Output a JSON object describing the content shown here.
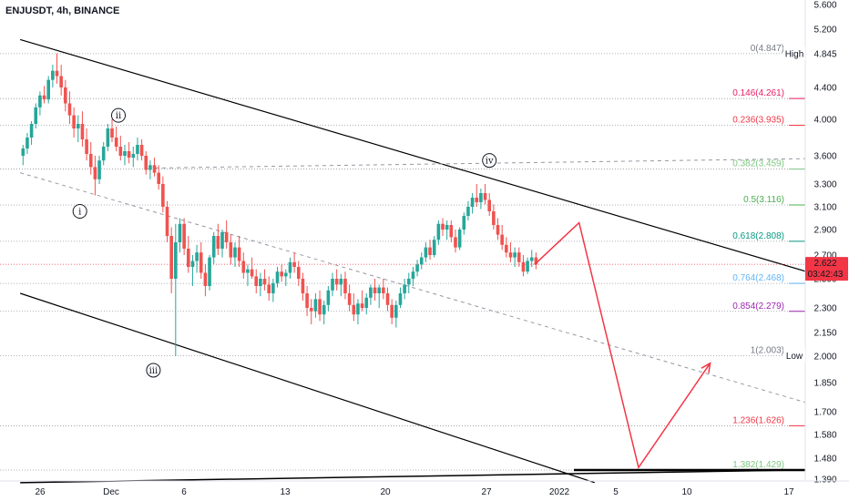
{
  "header": {
    "symbol_title": "ENJUSDT, 4h, BINANCE"
  },
  "colors": {
    "up": "#26a69a",
    "down": "#ef5350",
    "projection": "#f23645",
    "price_badge": "#f23645",
    "channel": "#000000"
  },
  "chart_data": {
    "type": "candlestick",
    "title": "ENJUSDT, 4h, BINANCE",
    "ylim": [
      1.37,
      5.7
    ],
    "y_ticks": [
      {
        "value": 5.6,
        "label": "5.600"
      },
      {
        "value": 5.2,
        "label": "5.200"
      },
      {
        "value": 4.845,
        "label": "4.845"
      },
      {
        "value": 4.4,
        "label": "4.400"
      },
      {
        "value": 4.0,
        "label": "4.000"
      },
      {
        "value": 3.6,
        "label": "3.600"
      },
      {
        "value": 3.3,
        "label": "3.300"
      },
      {
        "value": 3.1,
        "label": "3.100"
      },
      {
        "value": 2.9,
        "label": "2.900"
      },
      {
        "value": 2.7,
        "label": "2.700"
      },
      {
        "value": 2.5,
        "label": "2.500"
      },
      {
        "value": 2.3,
        "label": "2.300"
      },
      {
        "value": 2.15,
        "label": "2.150"
      },
      {
        "value": 2.0,
        "label": "2.000"
      },
      {
        "value": 1.85,
        "label": "1.850"
      },
      {
        "value": 1.7,
        "label": "1.700"
      },
      {
        "value": 1.58,
        "label": "1.580"
      },
      {
        "value": 1.48,
        "label": "1.480"
      },
      {
        "value": 1.39,
        "label": "1.390"
      }
    ],
    "x_ticks": [
      {
        "label": "26",
        "day": -5
      },
      {
        "label": "Dec",
        "day": 0
      },
      {
        "label": "6",
        "day": 5
      },
      {
        "label": "13",
        "day": 12
      },
      {
        "label": "20",
        "day": 19
      },
      {
        "label": "27",
        "day": 26
      },
      {
        "label": "2022",
        "day": 31
      },
      {
        "label": "5",
        "day": 35
      },
      {
        "label": "10",
        "day": 40
      },
      {
        "label": "17",
        "day": 47
      }
    ],
    "high_label": "High",
    "low_label": "Low",
    "current_price": {
      "value": 2.622,
      "label": "2.622",
      "countdown": "03:42:43"
    },
    "fib_levels": [
      {
        "level": 0,
        "price": 4.847,
        "label": "0(4.847)",
        "color": "#787b86"
      },
      {
        "level": 0.146,
        "price": 4.261,
        "label": "0.146(4.261)",
        "color": "#e91e63"
      },
      {
        "level": 0.236,
        "price": 3.935,
        "label": "0.236(3.935)",
        "color": "#f23645"
      },
      {
        "level": 0.382,
        "price": 3.459,
        "label": "0.382(3.459)",
        "color": "#81c784"
      },
      {
        "level": 0.5,
        "price": 3.116,
        "label": "0.5(3.116)",
        "color": "#4caf50"
      },
      {
        "level": 0.618,
        "price": 2.808,
        "label": "0.618(2.808)",
        "color": "#089981"
      },
      {
        "level": 0.764,
        "price": 2.468,
        "label": "0.764(2.468)",
        "color": "#64b5f6"
      },
      {
        "level": 0.854,
        "price": 2.279,
        "label": "0.854(2.279)",
        "color": "#9c27b0"
      },
      {
        "level": 1,
        "price": 2.003,
        "label": "1(2.003)",
        "color": "#787b86"
      },
      {
        "level": 1.236,
        "price": 1.626,
        "label": "1.236(1.626)",
        "color": "#f23645"
      },
      {
        "level": 1.382,
        "price": 1.429,
        "label": "1.382(1.429)",
        "color": "#81c784"
      }
    ],
    "waves": [
      {
        "label": "i",
        "day": -2.2,
        "price": 3.06
      },
      {
        "label": "ii",
        "day": 0.5,
        "price": 4.05
      },
      {
        "label": "iii",
        "day": 2.9,
        "price": 1.92
      },
      {
        "label": "iv",
        "day": 26.2,
        "price": 3.55
      }
    ],
    "channel_lines": [
      {
        "name": "upper",
        "from": {
          "day": -6.4,
          "price": 5.05
        },
        "to": {
          "day": 48.5,
          "price": 2.55
        }
      },
      {
        "name": "lower",
        "from": {
          "day": -6.4,
          "price": 2.4
        },
        "to": {
          "day": 33.5,
          "price": 1.375
        }
      },
      {
        "name": "base",
        "from": {
          "day": -6.4,
          "price": 1.375
        },
        "to": {
          "day": 48.5,
          "price": 1.43
        }
      }
    ],
    "dashed_lines": [
      {
        "name": "mid-channel",
        "from": {
          "day": -6.4,
          "price": 3.42
        },
        "to": {
          "day": 48.5,
          "price": 1.74
        }
      },
      {
        "name": "top-arc",
        "from": {
          "day": 3.0,
          "price": 3.47
        },
        "to": {
          "day": 48.5,
          "price": 3.57
        }
      }
    ],
    "projection_path": [
      {
        "day": 29.3,
        "price": 2.62
      },
      {
        "day": 32.4,
        "price": 2.96
      },
      {
        "day": 36.6,
        "price": 1.44
      },
      {
        "day": 41.6,
        "price": 1.96
      }
    ],
    "candles": [
      {
        "o": 3.6,
        "h": 3.72,
        "l": 3.5,
        "c": 3.68
      },
      {
        "o": 3.68,
        "h": 3.85,
        "l": 3.62,
        "c": 3.8
      },
      {
        "o": 3.8,
        "h": 3.98,
        "l": 3.72,
        "c": 3.95
      },
      {
        "o": 3.95,
        "h": 4.2,
        "l": 3.9,
        "c": 4.15
      },
      {
        "o": 4.15,
        "h": 4.35,
        "l": 4.05,
        "c": 4.3
      },
      {
        "o": 4.3,
        "h": 4.42,
        "l": 4.2,
        "c": 4.25
      },
      {
        "o": 4.25,
        "h": 4.55,
        "l": 4.2,
        "c": 4.5
      },
      {
        "o": 4.5,
        "h": 4.7,
        "l": 4.4,
        "c": 4.62
      },
      {
        "o": 4.62,
        "h": 4.85,
        "l": 4.45,
        "c": 4.55
      },
      {
        "o": 4.55,
        "h": 4.7,
        "l": 4.3,
        "c": 4.4
      },
      {
        "o": 4.4,
        "h": 4.5,
        "l": 4.1,
        "c": 4.2
      },
      {
        "o": 4.2,
        "h": 4.35,
        "l": 3.95,
        "c": 4.05
      },
      {
        "o": 4.05,
        "h": 4.15,
        "l": 3.8,
        "c": 3.9
      },
      {
        "o": 3.9,
        "h": 4.05,
        "l": 3.75,
        "c": 3.95
      },
      {
        "o": 3.95,
        "h": 4.1,
        "l": 3.7,
        "c": 3.78
      },
      {
        "o": 3.78,
        "h": 3.9,
        "l": 3.55,
        "c": 3.62
      },
      {
        "o": 3.62,
        "h": 3.75,
        "l": 3.4,
        "c": 3.48
      },
      {
        "o": 3.48,
        "h": 3.6,
        "l": 3.2,
        "c": 3.35
      },
      {
        "o": 3.35,
        "h": 3.6,
        "l": 3.3,
        "c": 3.55
      },
      {
        "o": 3.55,
        "h": 3.75,
        "l": 3.5,
        "c": 3.7
      },
      {
        "o": 3.7,
        "h": 3.95,
        "l": 3.65,
        "c": 3.9
      },
      {
        "o": 3.9,
        "h": 4.0,
        "l": 3.75,
        "c": 3.8
      },
      {
        "o": 3.8,
        "h": 3.92,
        "l": 3.65,
        "c": 3.7
      },
      {
        "o": 3.7,
        "h": 3.82,
        "l": 3.55,
        "c": 3.6
      },
      {
        "o": 3.6,
        "h": 3.72,
        "l": 3.5,
        "c": 3.65
      },
      {
        "o": 3.65,
        "h": 3.75,
        "l": 3.52,
        "c": 3.58
      },
      {
        "o": 3.58,
        "h": 3.7,
        "l": 3.48,
        "c": 3.62
      },
      {
        "o": 3.62,
        "h": 3.8,
        "l": 3.55,
        "c": 3.72
      },
      {
        "o": 3.72,
        "h": 3.78,
        "l": 3.55,
        "c": 3.6
      },
      {
        "o": 3.6,
        "h": 3.65,
        "l": 3.4,
        "c": 3.45
      },
      {
        "o": 3.45,
        "h": 3.55,
        "l": 3.35,
        "c": 3.5
      },
      {
        "o": 3.5,
        "h": 3.58,
        "l": 3.38,
        "c": 3.42
      },
      {
        "o": 3.42,
        "h": 3.5,
        "l": 3.25,
        "c": 3.3
      },
      {
        "o": 3.3,
        "h": 3.38,
        "l": 3.05,
        "c": 3.1
      },
      {
        "o": 3.1,
        "h": 3.15,
        "l": 2.8,
        "c": 2.85
      },
      {
        "o": 2.85,
        "h": 2.92,
        "l": 2.4,
        "c": 2.5
      },
      {
        "o": 2.5,
        "h": 2.95,
        "l": 2.0,
        "c": 2.8
      },
      {
        "o": 2.8,
        "h": 3.0,
        "l": 2.72,
        "c": 2.95
      },
      {
        "o": 2.95,
        "h": 3.0,
        "l": 2.7,
        "c": 2.75
      },
      {
        "o": 2.75,
        "h": 2.85,
        "l": 2.55,
        "c": 2.6
      },
      {
        "o": 2.6,
        "h": 2.7,
        "l": 2.45,
        "c": 2.65
      },
      {
        "o": 2.65,
        "h": 2.78,
        "l": 2.55,
        "c": 2.72
      },
      {
        "o": 2.72,
        "h": 2.8,
        "l": 2.5,
        "c": 2.55
      },
      {
        "o": 2.55,
        "h": 2.62,
        "l": 2.38,
        "c": 2.45
      },
      {
        "o": 2.45,
        "h": 2.7,
        "l": 2.42,
        "c": 2.68
      },
      {
        "o": 2.68,
        "h": 2.88,
        "l": 2.62,
        "c": 2.85
      },
      {
        "o": 2.85,
        "h": 2.95,
        "l": 2.7,
        "c": 2.75
      },
      {
        "o": 2.75,
        "h": 2.9,
        "l": 2.68,
        "c": 2.88
      },
      {
        "o": 2.88,
        "h": 2.98,
        "l": 2.75,
        "c": 2.8
      },
      {
        "o": 2.8,
        "h": 2.86,
        "l": 2.62,
        "c": 2.68
      },
      {
        "o": 2.68,
        "h": 2.8,
        "l": 2.6,
        "c": 2.76
      },
      {
        "o": 2.76,
        "h": 2.85,
        "l": 2.6,
        "c": 2.65
      },
      {
        "o": 2.65,
        "h": 2.72,
        "l": 2.5,
        "c": 2.55
      },
      {
        "o": 2.55,
        "h": 2.62,
        "l": 2.45,
        "c": 2.58
      },
      {
        "o": 2.58,
        "h": 2.68,
        "l": 2.5,
        "c": 2.52
      },
      {
        "o": 2.52,
        "h": 2.58,
        "l": 2.4,
        "c": 2.45
      },
      {
        "o": 2.45,
        "h": 2.55,
        "l": 2.38,
        "c": 2.5
      },
      {
        "o": 2.5,
        "h": 2.58,
        "l": 2.42,
        "c": 2.46
      },
      {
        "o": 2.46,
        "h": 2.52,
        "l": 2.35,
        "c": 2.4
      },
      {
        "o": 2.4,
        "h": 2.5,
        "l": 2.34,
        "c": 2.47
      },
      {
        "o": 2.47,
        "h": 2.6,
        "l": 2.44,
        "c": 2.56
      },
      {
        "o": 2.56,
        "h": 2.62,
        "l": 2.48,
        "c": 2.52
      },
      {
        "o": 2.52,
        "h": 2.58,
        "l": 2.45,
        "c": 2.55
      },
      {
        "o": 2.55,
        "h": 2.68,
        "l": 2.5,
        "c": 2.64
      },
      {
        "o": 2.64,
        "h": 2.72,
        "l": 2.55,
        "c": 2.6
      },
      {
        "o": 2.6,
        "h": 2.65,
        "l": 2.45,
        "c": 2.5
      },
      {
        "o": 2.5,
        "h": 2.55,
        "l": 2.35,
        "c": 2.4
      },
      {
        "o": 2.4,
        "h": 2.45,
        "l": 2.25,
        "c": 2.3
      },
      {
        "o": 2.3,
        "h": 2.36,
        "l": 2.2,
        "c": 2.28
      },
      {
        "o": 2.28,
        "h": 2.4,
        "l": 2.24,
        "c": 2.36
      },
      {
        "o": 2.36,
        "h": 2.42,
        "l": 2.22,
        "c": 2.26
      },
      {
        "o": 2.26,
        "h": 2.35,
        "l": 2.2,
        "c": 2.32
      },
      {
        "o": 2.32,
        "h": 2.45,
        "l": 2.28,
        "c": 2.42
      },
      {
        "o": 2.42,
        "h": 2.55,
        "l": 2.38,
        "c": 2.5
      },
      {
        "o": 2.5,
        "h": 2.58,
        "l": 2.42,
        "c": 2.46
      },
      {
        "o": 2.46,
        "h": 2.54,
        "l": 2.38,
        "c": 2.5
      },
      {
        "o": 2.5,
        "h": 2.56,
        "l": 2.36,
        "c": 2.4
      },
      {
        "o": 2.4,
        "h": 2.46,
        "l": 2.28,
        "c": 2.32
      },
      {
        "o": 2.32,
        "h": 2.4,
        "l": 2.22,
        "c": 2.26
      },
      {
        "o": 2.26,
        "h": 2.36,
        "l": 2.2,
        "c": 2.33
      },
      {
        "o": 2.33,
        "h": 2.42,
        "l": 2.28,
        "c": 2.3
      },
      {
        "o": 2.3,
        "h": 2.4,
        "l": 2.26,
        "c": 2.37
      },
      {
        "o": 2.37,
        "h": 2.46,
        "l": 2.32,
        "c": 2.44
      },
      {
        "o": 2.44,
        "h": 2.5,
        "l": 2.35,
        "c": 2.4
      },
      {
        "o": 2.4,
        "h": 2.46,
        "l": 2.3,
        "c": 2.44
      },
      {
        "o": 2.44,
        "h": 2.5,
        "l": 2.36,
        "c": 2.4
      },
      {
        "o": 2.4,
        "h": 2.44,
        "l": 2.28,
        "c": 2.32
      },
      {
        "o": 2.32,
        "h": 2.36,
        "l": 2.2,
        "c": 2.24
      },
      {
        "o": 2.24,
        "h": 2.35,
        "l": 2.18,
        "c": 2.32
      },
      {
        "o": 2.32,
        "h": 2.44,
        "l": 2.3,
        "c": 2.4
      },
      {
        "o": 2.4,
        "h": 2.5,
        "l": 2.36,
        "c": 2.46
      },
      {
        "o": 2.46,
        "h": 2.55,
        "l": 2.4,
        "c": 2.5
      },
      {
        "o": 2.5,
        "h": 2.6,
        "l": 2.45,
        "c": 2.56
      },
      {
        "o": 2.56,
        "h": 2.66,
        "l": 2.52,
        "c": 2.62
      },
      {
        "o": 2.62,
        "h": 2.72,
        "l": 2.58,
        "c": 2.68
      },
      {
        "o": 2.68,
        "h": 2.8,
        "l": 2.64,
        "c": 2.76
      },
      {
        "o": 2.76,
        "h": 2.82,
        "l": 2.66,
        "c": 2.7
      },
      {
        "o": 2.7,
        "h": 2.85,
        "l": 2.68,
        "c": 2.82
      },
      {
        "o": 2.82,
        "h": 2.98,
        "l": 2.78,
        "c": 2.95
      },
      {
        "o": 2.95,
        "h": 3.0,
        "l": 2.85,
        "c": 2.9
      },
      {
        "o": 2.9,
        "h": 2.98,
        "l": 2.82,
        "c": 2.94
      },
      {
        "o": 2.94,
        "h": 2.98,
        "l": 2.8,
        "c": 2.84
      },
      {
        "o": 2.84,
        "h": 2.9,
        "l": 2.72,
        "c": 2.76
      },
      {
        "o": 2.76,
        "h": 2.92,
        "l": 2.74,
        "c": 2.9
      },
      {
        "o": 2.9,
        "h": 3.05,
        "l": 2.86,
        "c": 3.02
      },
      {
        "o": 3.02,
        "h": 3.15,
        "l": 2.98,
        "c": 3.1
      },
      {
        "o": 3.1,
        "h": 3.22,
        "l": 3.04,
        "c": 3.18
      },
      {
        "o": 3.18,
        "h": 3.3,
        "l": 3.1,
        "c": 3.14
      },
      {
        "o": 3.14,
        "h": 3.26,
        "l": 3.08,
        "c": 3.22
      },
      {
        "o": 3.22,
        "h": 3.3,
        "l": 3.12,
        "c": 3.16
      },
      {
        "o": 3.16,
        "h": 3.22,
        "l": 3.02,
        "c": 3.06
      },
      {
        "o": 3.06,
        "h": 3.12,
        "l": 2.9,
        "c": 2.94
      },
      {
        "o": 2.94,
        "h": 3.0,
        "l": 2.82,
        "c": 2.86
      },
      {
        "o": 2.86,
        "h": 2.94,
        "l": 2.74,
        "c": 2.78
      },
      {
        "o": 2.78,
        "h": 2.84,
        "l": 2.68,
        "c": 2.72
      },
      {
        "o": 2.72,
        "h": 2.8,
        "l": 2.64,
        "c": 2.68
      },
      {
        "o": 2.68,
        "h": 2.76,
        "l": 2.6,
        "c": 2.72
      },
      {
        "o": 2.72,
        "h": 2.76,
        "l": 2.6,
        "c": 2.64
      },
      {
        "o": 2.64,
        "h": 2.7,
        "l": 2.52,
        "c": 2.56
      },
      {
        "o": 2.56,
        "h": 2.68,
        "l": 2.54,
        "c": 2.65
      },
      {
        "o": 2.65,
        "h": 2.74,
        "l": 2.6,
        "c": 2.68
      },
      {
        "o": 2.68,
        "h": 2.72,
        "l": 2.58,
        "c": 2.62
      }
    ]
  }
}
